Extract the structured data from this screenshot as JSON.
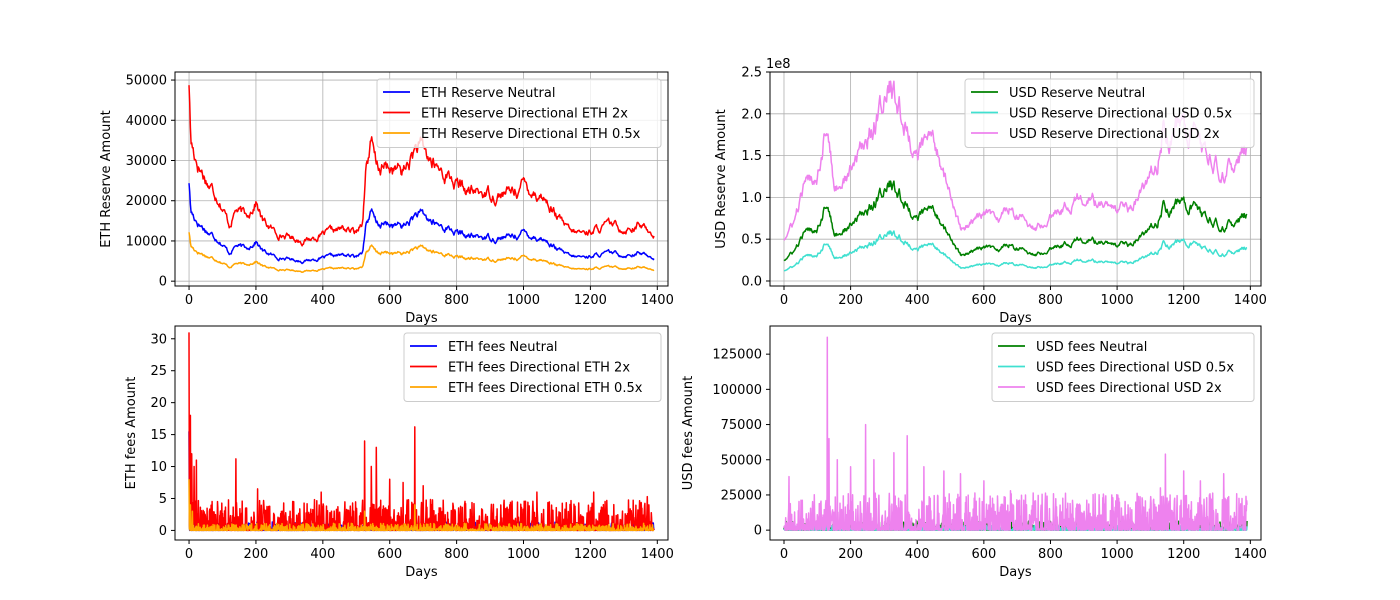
{
  "colors": {
    "neutral_eth": "#0000ff",
    "directional_eth_2x": "#ff0000",
    "directional_eth_05x": "#ffa500",
    "neutral_usd": "#008000",
    "directional_usd_05x": "#40e0d0",
    "directional_usd_2x": "#ee82ee",
    "grid": "#b0b0b0",
    "axes": "#000000"
  },
  "chart_data": [
    {
      "id": "eth_reserve",
      "type": "line",
      "title": "",
      "xlabel": "Days",
      "ylabel": "ETH Reserve Amount",
      "xlim": [
        -42,
        1432
      ],
      "ylim": [
        -1200,
        52000
      ],
      "xticks": [
        0,
        200,
        400,
        600,
        800,
        1000,
        1200,
        1400
      ],
      "yticks": [
        0,
        10000,
        20000,
        30000,
        40000,
        50000
      ],
      "yticklabels": [
        "0",
        "10000",
        "20000",
        "30000",
        "40000",
        "50000"
      ],
      "offset_text": "",
      "grid": true,
      "legend_position": "upper right",
      "series": [
        {
          "name": "ETH Reserve Neutral",
          "color_key": "neutral_eth",
          "style": "noisy",
          "noise": 0.045,
          "x": [
            0,
            5,
            15,
            30,
            60,
            90,
            120,
            140,
            170,
            200,
            220,
            260,
            300,
            340,
            380,
            420,
            460,
            500,
            520,
            530,
            545,
            560,
            600,
            640,
            680,
            700,
            740,
            780,
            800,
            840,
            880,
            920,
            960,
            1000,
            1020,
            1060,
            1100,
            1140,
            1180,
            1220,
            1260,
            1300,
            1340,
            1370,
            1390
          ],
          "y": [
            25000,
            17500,
            16000,
            14500,
            12000,
            10500,
            7000,
            9000,
            8000,
            10000,
            7500,
            6000,
            5500,
            5000,
            5500,
            6000,
            6500,
            6000,
            8000,
            15000,
            17000,
            14000,
            14000,
            13500,
            16500,
            16000,
            14000,
            13000,
            12000,
            11000,
            11000,
            10800,
            11000,
            12000,
            11500,
            10500,
            8000,
            6000,
            6000,
            6500,
            7000,
            6500,
            7000,
            6500,
            6000
          ]
        },
        {
          "name": "ETH Reserve Directional ETH 2x",
          "color_key": "directional_eth_2x",
          "style": "noisy",
          "noise": 0.045,
          "x": [
            0,
            5,
            15,
            30,
            60,
            90,
            120,
            140,
            170,
            200,
            220,
            260,
            300,
            340,
            380,
            420,
            460,
            500,
            520,
            530,
            545,
            560,
            600,
            640,
            680,
            700,
            740,
            780,
            800,
            840,
            880,
            920,
            960,
            1000,
            1020,
            1060,
            1100,
            1140,
            1180,
            1220,
            1260,
            1300,
            1340,
            1370,
            1390
          ],
          "y": [
            50000,
            35000,
            32000,
            29000,
            24000,
            21000,
            14000,
            18000,
            16000,
            20000,
            15000,
            12000,
            11000,
            10000,
            11000,
            12000,
            13000,
            12000,
            16000,
            30000,
            34000,
            28000,
            28000,
            27000,
            33000,
            32000,
            28000,
            26000,
            24000,
            22000,
            22000,
            21600,
            22000,
            24000,
            23000,
            21000,
            16000,
            12000,
            12000,
            13000,
            14000,
            13000,
            14000,
            13000,
            12000
          ]
        },
        {
          "name": "ETH Reserve Directional ETH 0.5x",
          "color_key": "directional_eth_05x",
          "style": "noisy",
          "noise": 0.045,
          "x": [
            0,
            5,
            15,
            30,
            60,
            90,
            120,
            140,
            170,
            200,
            220,
            260,
            300,
            340,
            380,
            420,
            460,
            500,
            520,
            530,
            545,
            560,
            600,
            640,
            680,
            700,
            740,
            780,
            800,
            840,
            880,
            920,
            960,
            1000,
            1020,
            1060,
            1100,
            1140,
            1180,
            1220,
            1260,
            1300,
            1340,
            1370,
            1390
          ],
          "y": [
            12500,
            8750,
            8000,
            7250,
            6000,
            5250,
            3500,
            4500,
            4000,
            5000,
            3750,
            3000,
            2750,
            2500,
            2750,
            3000,
            3250,
            3000,
            4000,
            7500,
            8500,
            7000,
            7000,
            6750,
            8250,
            8000,
            7000,
            6500,
            6000,
            5500,
            5500,
            5400,
            5500,
            6000,
            5750,
            5250,
            4000,
            3000,
            3000,
            3250,
            3500,
            3250,
            3500,
            3250,
            3000
          ]
        }
      ]
    },
    {
      "id": "usd_reserve",
      "type": "line",
      "title": "",
      "xlabel": "Days",
      "ylabel": "USD Reserve Amount",
      "xlim": [
        -42,
        1432
      ],
      "ylim": [
        -0.06,
        2.5
      ],
      "xticks": [
        0,
        200,
        400,
        600,
        800,
        1000,
        1200,
        1400
      ],
      "yticks": [
        0.0,
        0.5,
        1.0,
        1.5,
        2.0,
        2.5
      ],
      "yticklabels": [
        "0.0",
        "0.5",
        "1.0",
        "1.5",
        "2.0",
        "2.5"
      ],
      "offset_text": "1e8",
      "grid": true,
      "legend_position": "upper right",
      "series": [
        {
          "name": "USD Reserve Neutral",
          "color_key": "neutral_usd",
          "style": "noisy",
          "noise": 0.05,
          "x": [
            0,
            30,
            60,
            100,
            130,
            150,
            200,
            260,
            300,
            320,
            360,
            400,
            440,
            460,
            500,
            530,
            560,
            600,
            640,
            680,
            720,
            760,
            800,
            840,
            880,
            920,
            960,
            1000,
            1040,
            1080,
            1120,
            1140,
            1160,
            1200,
            1240,
            1280,
            1320,
            1360,
            1390
          ],
          "y": [
            0.25,
            0.35,
            0.55,
            0.65,
            1.0,
            0.55,
            0.65,
            0.9,
            1.1,
            1.15,
            0.95,
            0.75,
            0.85,
            0.8,
            0.5,
            0.3,
            0.35,
            0.4,
            0.35,
            0.45,
            0.35,
            0.32,
            0.42,
            0.45,
            0.5,
            0.48,
            0.45,
            0.4,
            0.42,
            0.55,
            0.7,
            0.95,
            0.85,
            0.95,
            0.85,
            0.7,
            0.65,
            0.7,
            0.8
          ]
        },
        {
          "name": "USD Reserve Directional USD 0.5x",
          "color_key": "directional_usd_05x",
          "style": "noisy",
          "noise": 0.05,
          "x": [
            0,
            30,
            60,
            100,
            130,
            150,
            200,
            260,
            300,
            320,
            360,
            400,
            440,
            460,
            500,
            530,
            560,
            600,
            640,
            680,
            720,
            760,
            800,
            840,
            880,
            920,
            960,
            1000,
            1040,
            1080,
            1120,
            1140,
            1160,
            1200,
            1240,
            1280,
            1320,
            1360,
            1390
          ],
          "y": [
            0.125,
            0.175,
            0.275,
            0.325,
            0.5,
            0.275,
            0.325,
            0.45,
            0.55,
            0.575,
            0.475,
            0.375,
            0.425,
            0.4,
            0.25,
            0.15,
            0.175,
            0.2,
            0.175,
            0.225,
            0.175,
            0.16,
            0.21,
            0.225,
            0.25,
            0.24,
            0.225,
            0.2,
            0.21,
            0.275,
            0.35,
            0.475,
            0.425,
            0.475,
            0.425,
            0.35,
            0.325,
            0.35,
            0.4
          ]
        },
        {
          "name": "USD Reserve Directional USD 2x",
          "color_key": "directional_usd_2x",
          "style": "noisy",
          "noise": 0.05,
          "x": [
            0,
            30,
            60,
            100,
            130,
            150,
            200,
            260,
            300,
            320,
            360,
            400,
            440,
            460,
            500,
            530,
            560,
            600,
            640,
            680,
            720,
            760,
            800,
            840,
            880,
            920,
            960,
            1000,
            1040,
            1080,
            1120,
            1140,
            1160,
            1200,
            1240,
            1280,
            1320,
            1360,
            1390
          ],
          "y": [
            0.5,
            0.7,
            1.1,
            1.3,
            2.0,
            1.1,
            1.3,
            1.8,
            2.2,
            2.3,
            1.9,
            1.5,
            1.7,
            1.6,
            1.0,
            0.6,
            0.7,
            0.8,
            0.7,
            0.9,
            0.7,
            0.64,
            0.84,
            0.9,
            1.0,
            0.96,
            0.9,
            0.8,
            0.84,
            1.1,
            1.4,
            1.9,
            1.7,
            1.9,
            1.7,
            1.4,
            1.3,
            1.4,
            1.6
          ]
        }
      ]
    },
    {
      "id": "eth_fees",
      "type": "line",
      "title": "",
      "xlabel": "Days",
      "ylabel": "ETH fees Amount",
      "xlim": [
        -42,
        1432
      ],
      "ylim": [
        -1.5,
        32
      ],
      "xticks": [
        0,
        200,
        400,
        600,
        800,
        1000,
        1200,
        1400
      ],
      "yticks": [
        0,
        5,
        10,
        15,
        20,
        25,
        30
      ],
      "yticklabels": [
        "0",
        "5",
        "10",
        "15",
        "20",
        "25",
        "30"
      ],
      "offset_text": "",
      "grid": false,
      "legend_position": "upper right",
      "series": [
        {
          "name": "ETH fees Neutral",
          "color_key": "neutral_eth",
          "style": "spiky",
          "base": 0.6,
          "max": 15.5,
          "peaks": [
            [
              0,
              15.5
            ],
            [
              4,
              4.5
            ]
          ]
        },
        {
          "name": "ETH fees Directional ETH 2x",
          "color_key": "directional_eth_2x",
          "style": "spiky",
          "base": 2.2,
          "peaks": [
            [
              0,
              31
            ],
            [
              4,
              18
            ],
            [
              8,
              12
            ],
            [
              15,
              10
            ],
            [
              22,
              11
            ],
            [
              140,
              11.2
            ],
            [
              205,
              6.5
            ],
            [
              395,
              6
            ],
            [
              525,
              14
            ],
            [
              545,
              10
            ],
            [
              560,
              13
            ],
            [
              600,
              8
            ],
            [
              640,
              7.5
            ],
            [
              675,
              16.2
            ],
            [
              700,
              7
            ],
            [
              1040,
              6
            ],
            [
              1210,
              6
            ],
            [
              1370,
              5.3
            ]
          ]
        },
        {
          "name": "ETH fees Directional ETH 0.5x",
          "color_key": "directional_eth_05x",
          "style": "spiky",
          "base": 0.5,
          "peaks": [
            [
              0,
              8
            ],
            [
              4,
              4
            ],
            [
              10,
              3
            ],
            [
              525,
              3
            ],
            [
              675,
              4
            ]
          ]
        }
      ]
    },
    {
      "id": "usd_fees",
      "type": "line",
      "title": "",
      "xlabel": "Days",
      "ylabel": "USD fees Amount",
      "xlim": [
        -42,
        1432
      ],
      "ylim": [
        -7000,
        145000
      ],
      "xticks": [
        0,
        200,
        400,
        600,
        800,
        1000,
        1200,
        1400
      ],
      "yticks": [
        0,
        25000,
        50000,
        75000,
        100000,
        125000
      ],
      "yticklabels": [
        "0",
        "25000",
        "50000",
        "75000",
        "100000",
        "125000"
      ],
      "offset_text": "",
      "grid": false,
      "legend_position": "upper right",
      "series": [
        {
          "name": "USD fees Neutral",
          "color_key": "neutral_usd",
          "style": "spiky",
          "base": 3000,
          "peaks": [
            [
              130,
              30000
            ]
          ]
        },
        {
          "name": "USD fees Directional USD 0.5x",
          "color_key": "directional_usd_05x",
          "style": "spiky",
          "base": 1500,
          "peaks": [
            [
              130,
              15000
            ]
          ]
        },
        {
          "name": "USD fees Directional USD 2x",
          "color_key": "directional_usd_2x",
          "style": "spiky",
          "base": 12000,
          "peaks": [
            [
              15,
              38000
            ],
            [
              130,
              137000
            ],
            [
              135,
              65000
            ],
            [
              160,
              50000
            ],
            [
              200,
              45000
            ],
            [
              245,
              75000
            ],
            [
              270,
              50000
            ],
            [
              330,
              55000
            ],
            [
              370,
              67000
            ],
            [
              420,
              45000
            ],
            [
              480,
              42000
            ],
            [
              530,
              40000
            ],
            [
              600,
              35000
            ],
            [
              680,
              28000
            ],
            [
              1130,
              30000
            ],
            [
              1145,
              54000
            ],
            [
              1200,
              42000
            ],
            [
              1250,
              35000
            ],
            [
              1320,
              40000
            ]
          ]
        }
      ]
    }
  ]
}
